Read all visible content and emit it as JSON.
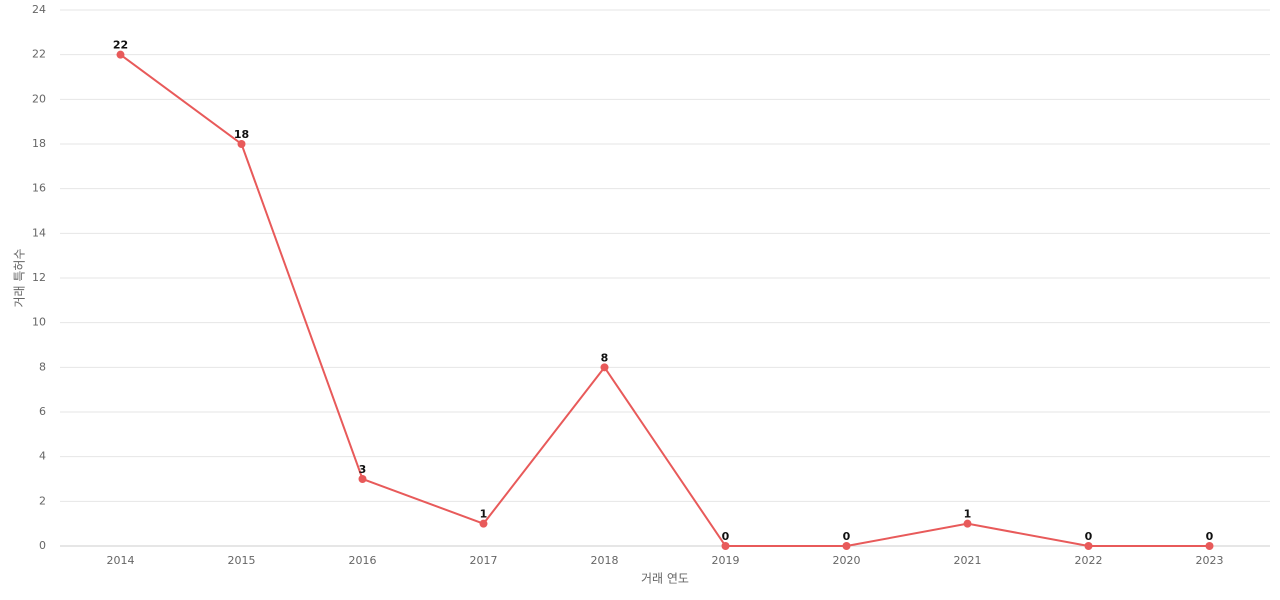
{
  "chart_data": {
    "type": "line",
    "x_label": "거래 연도",
    "y_label": "거래 특허수",
    "categories": [
      "2014",
      "2015",
      "2016",
      "2017",
      "2018",
      "2019",
      "2020",
      "2021",
      "2022",
      "2023"
    ],
    "values": [
      22,
      18,
      3,
      1,
      8,
      0,
      0,
      1,
      0,
      0
    ],
    "color": "#e85a5a",
    "ylim": [
      0,
      24
    ],
    "yticks": [
      0,
      2,
      4,
      6,
      8,
      10,
      12,
      14,
      16,
      18,
      20,
      22,
      24
    ],
    "grid": true
  }
}
